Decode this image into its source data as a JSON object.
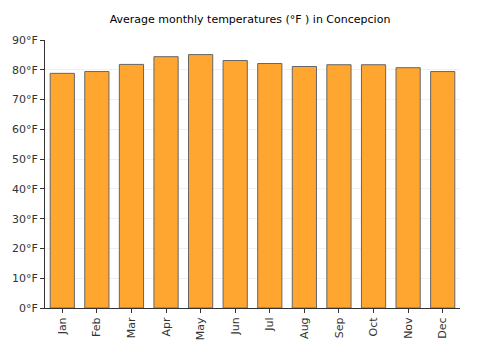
{
  "chart_data": {
    "type": "bar",
    "title": "Average monthly temperatures (°F ) in Concepcion",
    "categories": [
      "Jan",
      "Feb",
      "Mar",
      "Apr",
      "May",
      "Jun",
      "Jul",
      "Aug",
      "Sep",
      "Oct",
      "Nov",
      "Dec"
    ],
    "values": [
      78.8,
      79.4,
      81.8,
      84.4,
      85.1,
      83.1,
      82.1,
      81.1,
      81.7,
      81.7,
      80.7,
      79.4
    ],
    "color": "#ffa630",
    "ylim": [
      0,
      90
    ],
    "yticks": [
      {
        "value": 0,
        "label": "0°F"
      },
      {
        "value": 10,
        "label": "10°F"
      },
      {
        "value": 20,
        "label": "20°F"
      },
      {
        "value": 30,
        "label": "30°F"
      },
      {
        "value": 40,
        "label": "40°F"
      },
      {
        "value": 50,
        "label": "50°F"
      },
      {
        "value": 60,
        "label": "60°F"
      },
      {
        "value": 70,
        "label": "70°F"
      },
      {
        "value": 80,
        "label": "80°F"
      },
      {
        "value": 90,
        "label": "90°F"
      }
    ],
    "grid": true
  }
}
